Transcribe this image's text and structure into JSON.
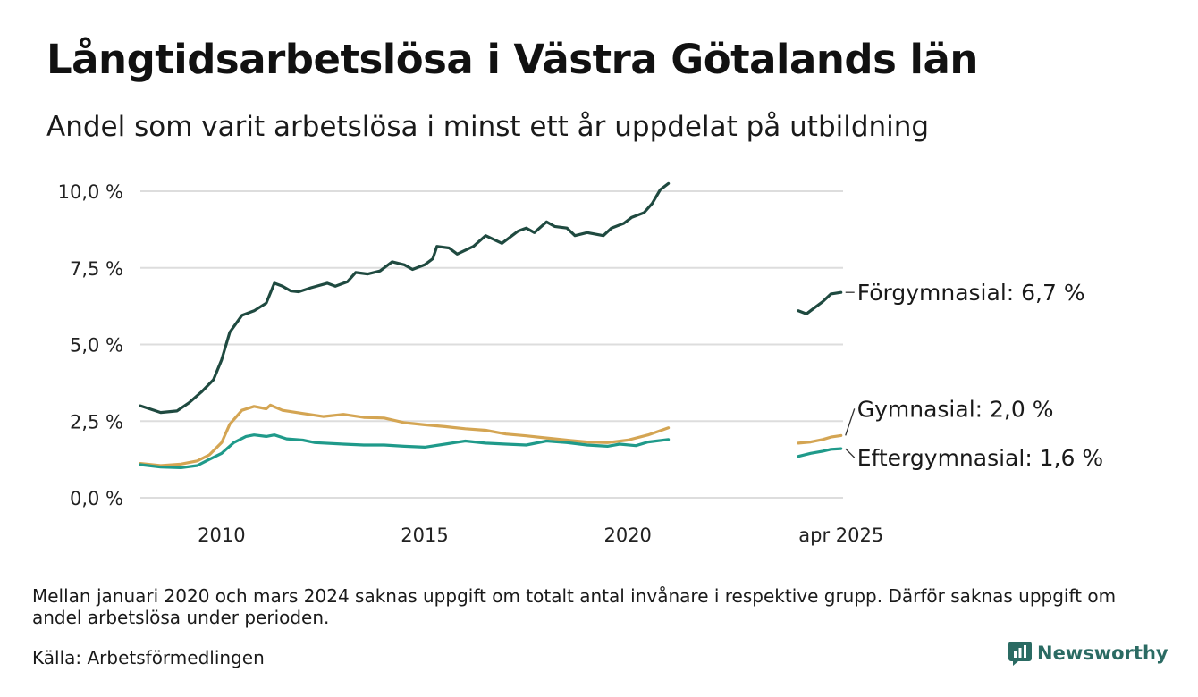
{
  "title": "Långtidsarbetslösa i Västra Götalands län",
  "subtitle": "Andel som varit arbetslösa i minst ett år uppdelat på utbildning",
  "note": "Mellan januari 2020 och mars 2024 saknas uppgift om totalt antal invånare i respektive grupp. Därför saknas uppgift om andel arbetslösa under perioden.",
  "source": "Källa: Arbetsförmedlingen",
  "brand": {
    "name": "Newsworthy",
    "icon": "bar-chart-speech-icon",
    "color": "#2b6b63"
  },
  "chart_data": {
    "type": "line",
    "xlim": [
      2008.0,
      2025.3
    ],
    "ylim": [
      0,
      10
    ],
    "yticks": [
      0,
      2.5,
      5,
      7.5,
      10
    ],
    "ytick_labels": [
      "0,0 %",
      "2,5 %",
      "5,0 %",
      "7,5 %",
      "10,0 %"
    ],
    "xticks": [
      2010,
      2015,
      2020,
      2025.25
    ],
    "xtick_labels": [
      "2010",
      "2015",
      "2020",
      "apr 2025"
    ],
    "grid": "horizontal",
    "series": [
      {
        "name": "Förgymnasial",
        "label": "Förgymnasial: 6,7 %",
        "color": "#1f4a40",
        "segments": [
          [
            [
              2008.0,
              3.0
            ],
            [
              2008.5,
              2.78
            ],
            [
              2008.9,
              2.83
            ],
            [
              2009.2,
              3.1
            ],
            [
              2009.5,
              3.45
            ],
            [
              2009.8,
              3.85
            ],
            [
              2010.0,
              4.5
            ],
            [
              2010.2,
              5.4
            ],
            [
              2010.5,
              5.95
            ],
            [
              2010.8,
              6.1
            ],
            [
              2011.1,
              6.35
            ],
            [
              2011.3,
              7.0
            ],
            [
              2011.5,
              6.9
            ],
            [
              2011.7,
              6.75
            ],
            [
              2011.9,
              6.72
            ],
            [
              2012.2,
              6.85
            ],
            [
              2012.6,
              7.0
            ],
            [
              2012.8,
              6.9
            ],
            [
              2013.1,
              7.05
            ],
            [
              2013.3,
              7.35
            ],
            [
              2013.6,
              7.3
            ],
            [
              2013.9,
              7.4
            ],
            [
              2014.2,
              7.7
            ],
            [
              2014.5,
              7.6
            ],
            [
              2014.7,
              7.45
            ],
            [
              2015.0,
              7.6
            ],
            [
              2015.2,
              7.8
            ],
            [
              2015.3,
              8.2
            ],
            [
              2015.6,
              8.15
            ],
            [
              2015.8,
              7.95
            ],
            [
              2016.2,
              8.2
            ],
            [
              2016.5,
              8.55
            ],
            [
              2016.9,
              8.3
            ],
            [
              2017.3,
              8.7
            ],
            [
              2017.5,
              8.8
            ],
            [
              2017.7,
              8.65
            ],
            [
              2018.0,
              9.0
            ],
            [
              2018.2,
              8.85
            ],
            [
              2018.5,
              8.8
            ],
            [
              2018.7,
              8.55
            ],
            [
              2019.0,
              8.65
            ],
            [
              2019.4,
              8.55
            ],
            [
              2019.6,
              8.8
            ],
            [
              2019.9,
              8.95
            ],
            [
              2020.1,
              9.15
            ],
            [
              2020.4,
              9.3
            ],
            [
              2020.6,
              9.6
            ],
            [
              2020.8,
              10.05
            ],
            [
              2021.0,
              10.25
            ]
          ],
          [
            [
              2024.2,
              6.1
            ],
            [
              2024.4,
              6.0
            ],
            [
              2024.6,
              6.2
            ],
            [
              2024.8,
              6.4
            ],
            [
              2025.0,
              6.65
            ],
            [
              2025.25,
              6.7
            ]
          ]
        ]
      },
      {
        "name": "Gymnasial",
        "label": "Gymnasial: 2,0 %",
        "color": "#d4a553",
        "segments": [
          [
            [
              2008.0,
              1.12
            ],
            [
              2008.5,
              1.05
            ],
            [
              2009.0,
              1.1
            ],
            [
              2009.4,
              1.2
            ],
            [
              2009.7,
              1.4
            ],
            [
              2010.0,
              1.8
            ],
            [
              2010.2,
              2.4
            ],
            [
              2010.5,
              2.85
            ],
            [
              2010.8,
              2.98
            ],
            [
              2011.1,
              2.9
            ],
            [
              2011.2,
              3.02
            ],
            [
              2011.5,
              2.85
            ],
            [
              2012.0,
              2.75
            ],
            [
              2012.5,
              2.65
            ],
            [
              2013.0,
              2.72
            ],
            [
              2013.5,
              2.62
            ],
            [
              2014.0,
              2.6
            ],
            [
              2014.5,
              2.45
            ],
            [
              2015.0,
              2.38
            ],
            [
              2015.5,
              2.32
            ],
            [
              2016.0,
              2.25
            ],
            [
              2016.5,
              2.2
            ],
            [
              2017.0,
              2.08
            ],
            [
              2017.5,
              2.02
            ],
            [
              2018.0,
              1.95
            ],
            [
              2018.5,
              1.88
            ],
            [
              2019.0,
              1.82
            ],
            [
              2019.5,
              1.8
            ],
            [
              2020.0,
              1.88
            ],
            [
              2020.5,
              2.05
            ],
            [
              2021.0,
              2.28
            ]
          ],
          [
            [
              2024.2,
              1.78
            ],
            [
              2024.5,
              1.82
            ],
            [
              2024.8,
              1.9
            ],
            [
              2025.0,
              1.98
            ],
            [
              2025.25,
              2.03
            ]
          ]
        ]
      },
      {
        "name": "Eftergymnasial",
        "label": "Eftergymnasial: 1,6 %",
        "color": "#1f9a8a",
        "segments": [
          [
            [
              2008.0,
              1.08
            ],
            [
              2008.5,
              1.0
            ],
            [
              2009.0,
              0.98
            ],
            [
              2009.4,
              1.05
            ],
            [
              2009.7,
              1.25
            ],
            [
              2010.0,
              1.45
            ],
            [
              2010.3,
              1.8
            ],
            [
              2010.6,
              2.0
            ],
            [
              2010.8,
              2.05
            ],
            [
              2011.1,
              2.0
            ],
            [
              2011.3,
              2.05
            ],
            [
              2011.6,
              1.92
            ],
            [
              2012.0,
              1.88
            ],
            [
              2012.3,
              1.8
            ],
            [
              2013.0,
              1.75
            ],
            [
              2013.5,
              1.72
            ],
            [
              2014.0,
              1.72
            ],
            [
              2014.5,
              1.68
            ],
            [
              2015.0,
              1.65
            ],
            [
              2015.5,
              1.75
            ],
            [
              2016.0,
              1.85
            ],
            [
              2016.5,
              1.78
            ],
            [
              2017.0,
              1.75
            ],
            [
              2017.5,
              1.72
            ],
            [
              2018.0,
              1.85
            ],
            [
              2018.5,
              1.8
            ],
            [
              2019.0,
              1.72
            ],
            [
              2019.5,
              1.68
            ],
            [
              2019.8,
              1.75
            ],
            [
              2020.2,
              1.7
            ],
            [
              2020.5,
              1.82
            ],
            [
              2021.0,
              1.9
            ]
          ],
          [
            [
              2024.2,
              1.35
            ],
            [
              2024.5,
              1.45
            ],
            [
              2024.8,
              1.52
            ],
            [
              2025.0,
              1.58
            ],
            [
              2025.25,
              1.6
            ]
          ]
        ]
      }
    ]
  }
}
